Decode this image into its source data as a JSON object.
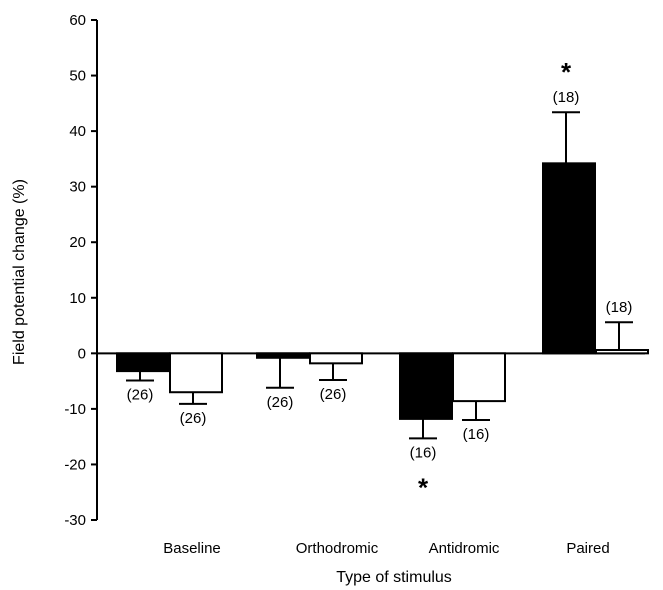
{
  "chart_data": {
    "type": "bar",
    "xlabel": "Type of stimulus",
    "ylabel": "Field potential change (%)",
    "ylim": [
      -30,
      60
    ],
    "yticks": [
      "60",
      "50",
      "40",
      "30",
      "20",
      "10",
      "0",
      "-10",
      "-20",
      "-30"
    ],
    "yticks_values": [
      60,
      50,
      40,
      30,
      20,
      10,
      0,
      -10,
      -20,
      -30
    ],
    "categories": [
      "Baseline",
      "Orthodromic",
      "Antidromic",
      "Paired"
    ],
    "grid": false,
    "legend": "none",
    "series": [
      {
        "fill": "#000000",
        "values": [
          -3.2,
          -0.8,
          -11.8,
          34.2
        ],
        "error": [
          1.7,
          5.4,
          3.5,
          9.2
        ],
        "n_labels": [
          "(26)",
          "(26)",
          "(16)",
          "(18)"
        ],
        "significance": [
          "",
          "",
          "*",
          "*"
        ]
      },
      {
        "fill": "#ffffff",
        "values": [
          -7.0,
          -1.8,
          -8.6,
          0.6
        ],
        "error": [
          2.1,
          3.0,
          3.4,
          5.0
        ],
        "n_labels": [
          "(26)",
          "(26)",
          "(16)",
          "(18)"
        ],
        "significance": [
          "",
          "",
          "",
          ""
        ]
      }
    ]
  }
}
